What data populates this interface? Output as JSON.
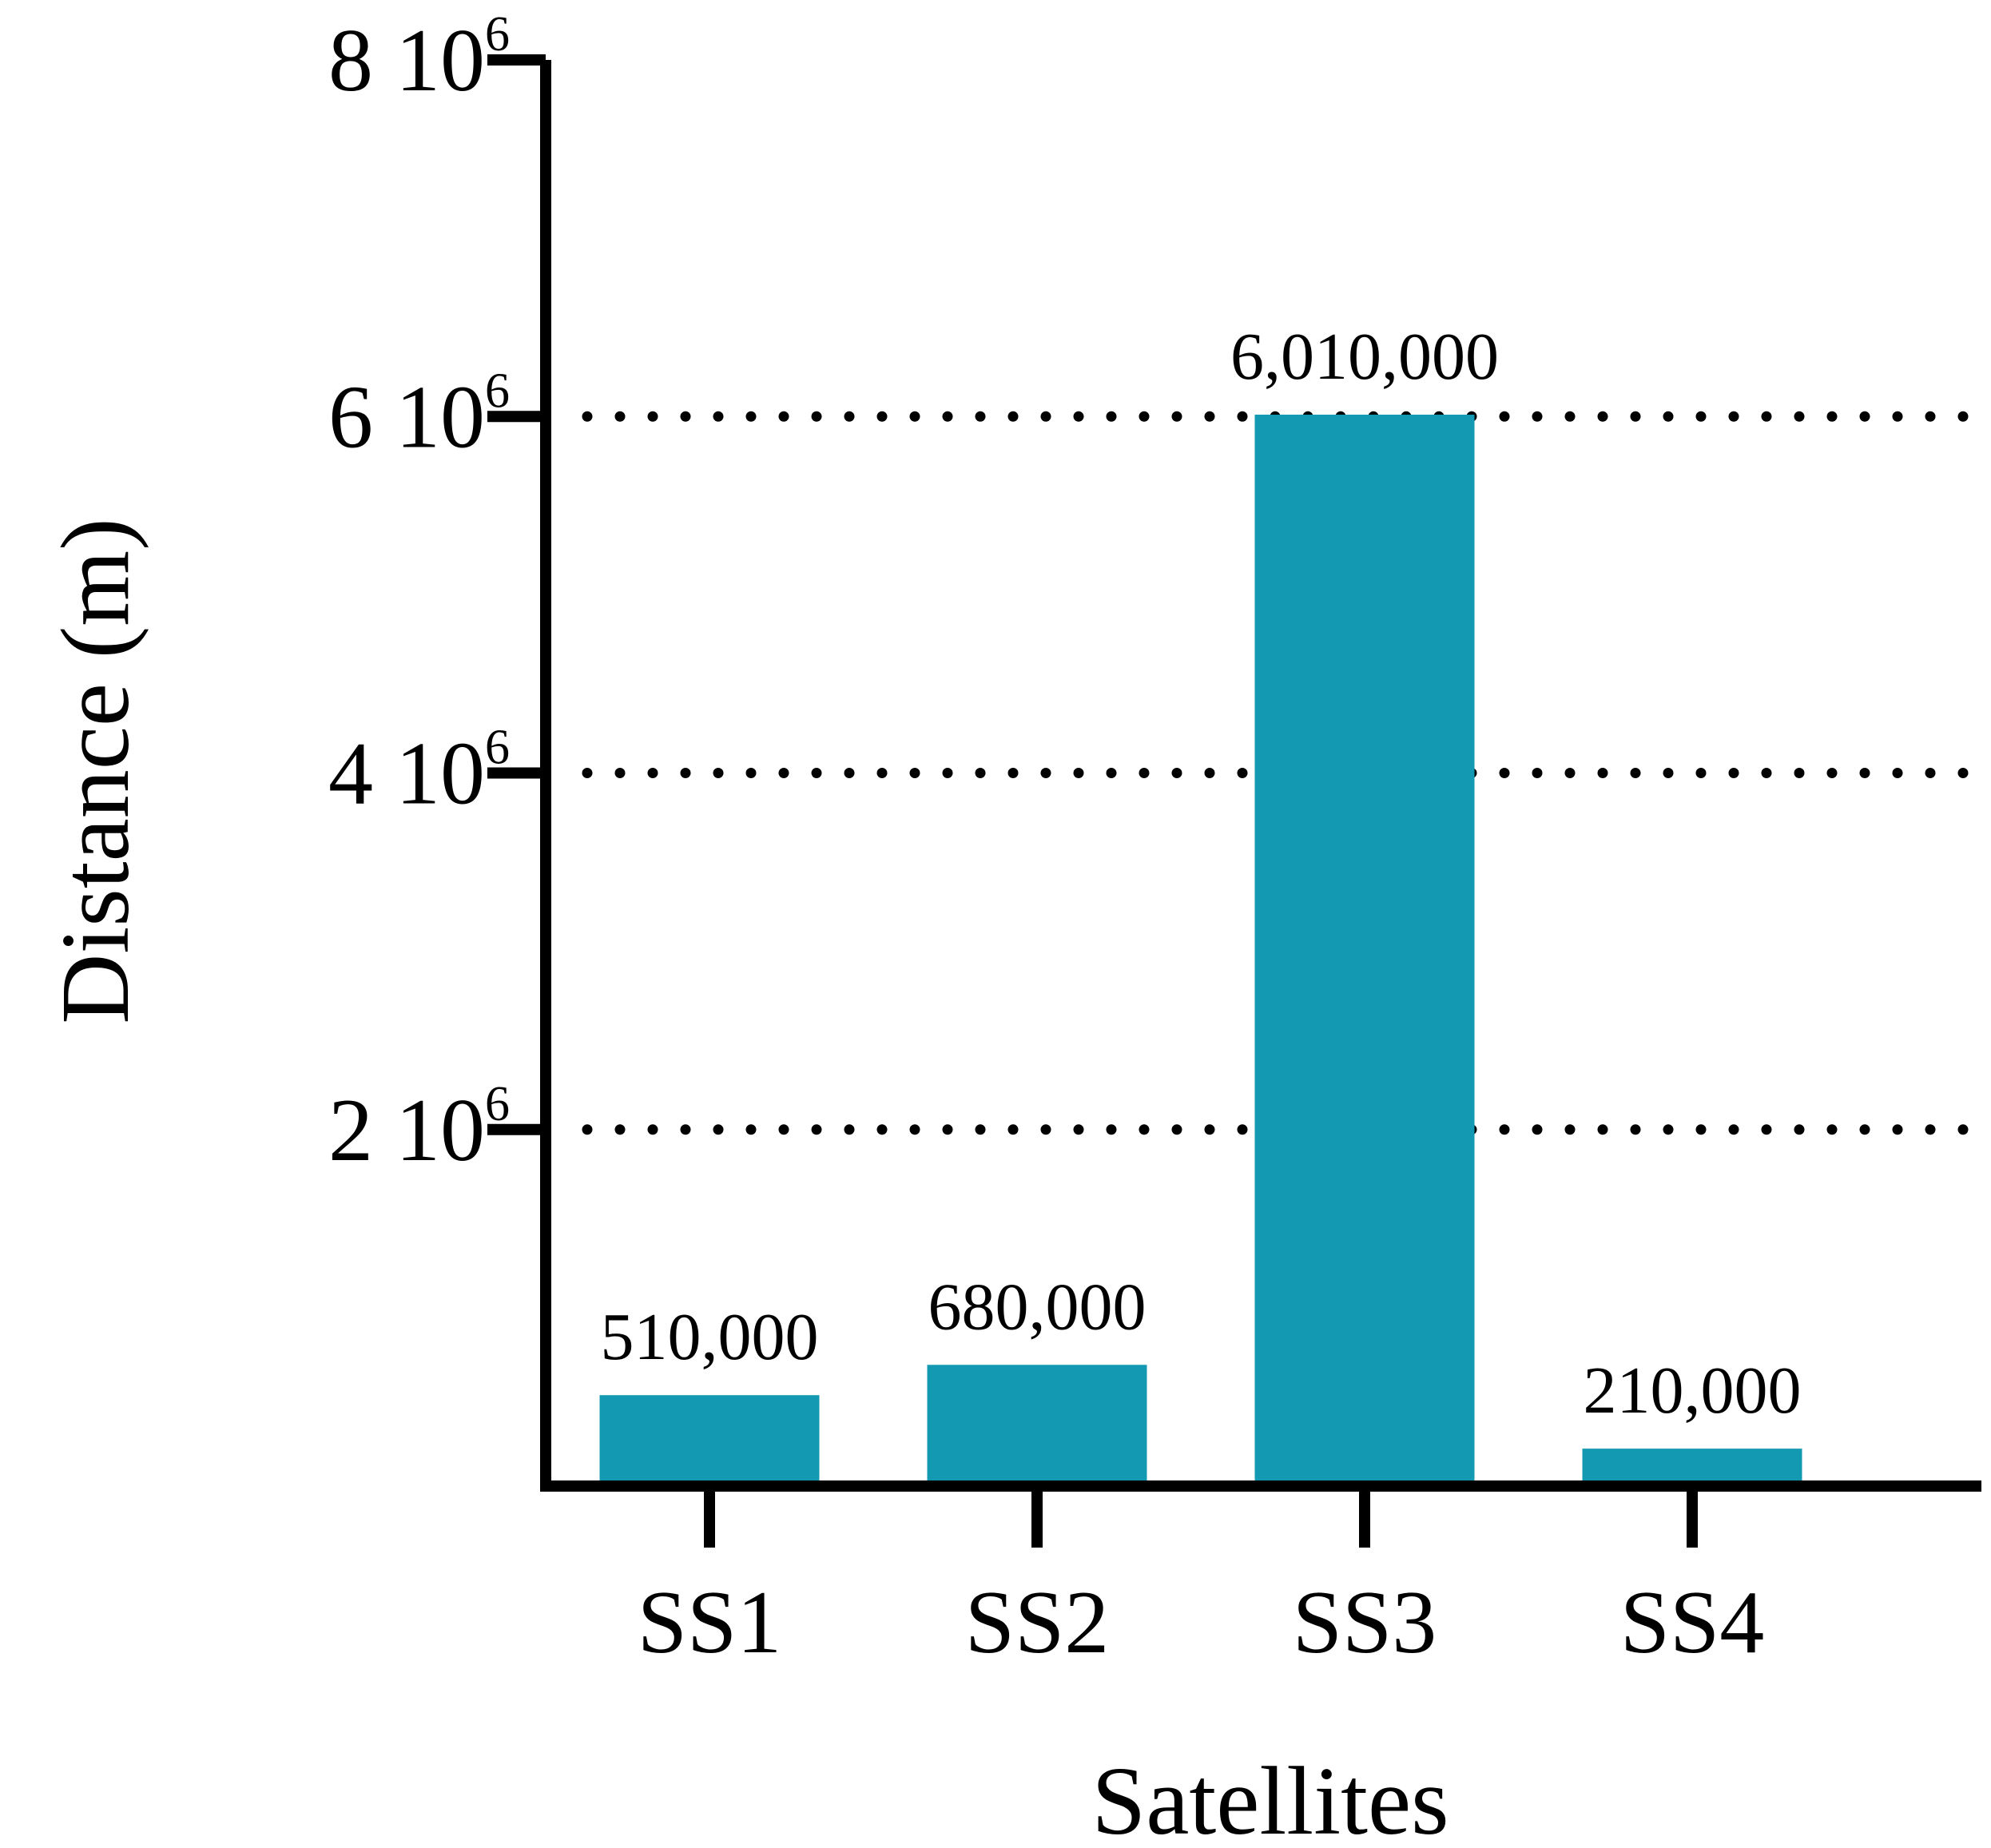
{
  "chart_data": {
    "type": "bar",
    "categories": [
      "SS1",
      "SS2",
      "SS3",
      "SS4"
    ],
    "values": [
      510000,
      680000,
      6010000,
      210000
    ],
    "data_labels": [
      "510,000",
      "680,000",
      "6,010,000",
      "210,000"
    ],
    "xlabel": "Satellites",
    "ylabel": "Distance (m)",
    "ylim": [
      0,
      8000000
    ],
    "y_ticks": [
      {
        "value": 2000000,
        "base": "2  10",
        "exp": "6"
      },
      {
        "value": 4000000,
        "base": "4  10",
        "exp": "6"
      },
      {
        "value": 6000000,
        "base": "6  10",
        "exp": "6"
      },
      {
        "value": 8000000,
        "base": "8  10",
        "exp": "6"
      }
    ],
    "grid": "dotted horizontal at major ticks",
    "legend": "none",
    "colors": {
      "bar": "#1399B2",
      "axis": "#000000",
      "grid": "#000000"
    }
  }
}
